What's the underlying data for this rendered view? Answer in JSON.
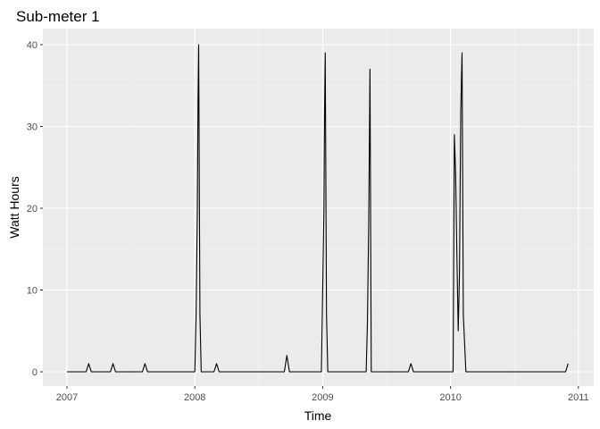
{
  "chart_data": {
    "type": "line",
    "title": "Sub-meter 1",
    "xlabel": "Time",
    "ylabel": "Watt Hours",
    "xlim": [
      2007.0,
      2011.0
    ],
    "ylim": [
      0,
      40
    ],
    "x_ticks": [
      2007,
      2008,
      2009,
      2010,
      2011
    ],
    "x_tick_labels": [
      "2007",
      "2008",
      "2009",
      "2010",
      "2011"
    ],
    "y_ticks": [
      0,
      10,
      20,
      30,
      40
    ],
    "y_tick_labels": [
      "0",
      "10",
      "20",
      "30",
      "40"
    ],
    "grid": true,
    "background": "#ebebeb",
    "line_color": "#000000",
    "series": [
      {
        "x": [
          2007.0,
          2007.15,
          2007.17,
          2007.19,
          2007.34,
          2007.36,
          2007.38,
          2007.59,
          2007.61,
          2007.63,
          2008.0,
          2008.01,
          2008.02,
          2008.025,
          2008.03,
          2008.04,
          2008.05,
          2008.15,
          2008.17,
          2008.19,
          2008.7,
          2008.72,
          2008.74,
          2008.99,
          2009.0,
          2009.01,
          2009.015,
          2009.02,
          2009.03,
          2009.04,
          2009.34,
          2009.35,
          2009.36,
          2009.37,
          2009.38,
          2009.67,
          2009.69,
          2009.71,
          2010.02,
          2010.03,
          2010.04,
          2010.05,
          2010.06,
          2010.07,
          2010.08,
          2010.09,
          2010.1,
          2010.12,
          2010.9,
          2010.92
        ],
        "y": [
          0,
          0,
          1,
          0,
          0,
          1,
          0,
          0,
          1,
          0,
          0,
          7,
          20,
          33,
          40,
          7,
          0,
          0,
          1,
          0,
          0,
          2,
          0,
          0,
          10,
          20,
          32,
          39,
          7,
          0,
          0,
          6,
          18,
          37,
          0,
          0,
          1,
          0,
          0,
          29,
          24,
          14,
          5,
          12,
          32,
          39,
          7,
          0,
          0,
          1
        ]
      }
    ]
  }
}
